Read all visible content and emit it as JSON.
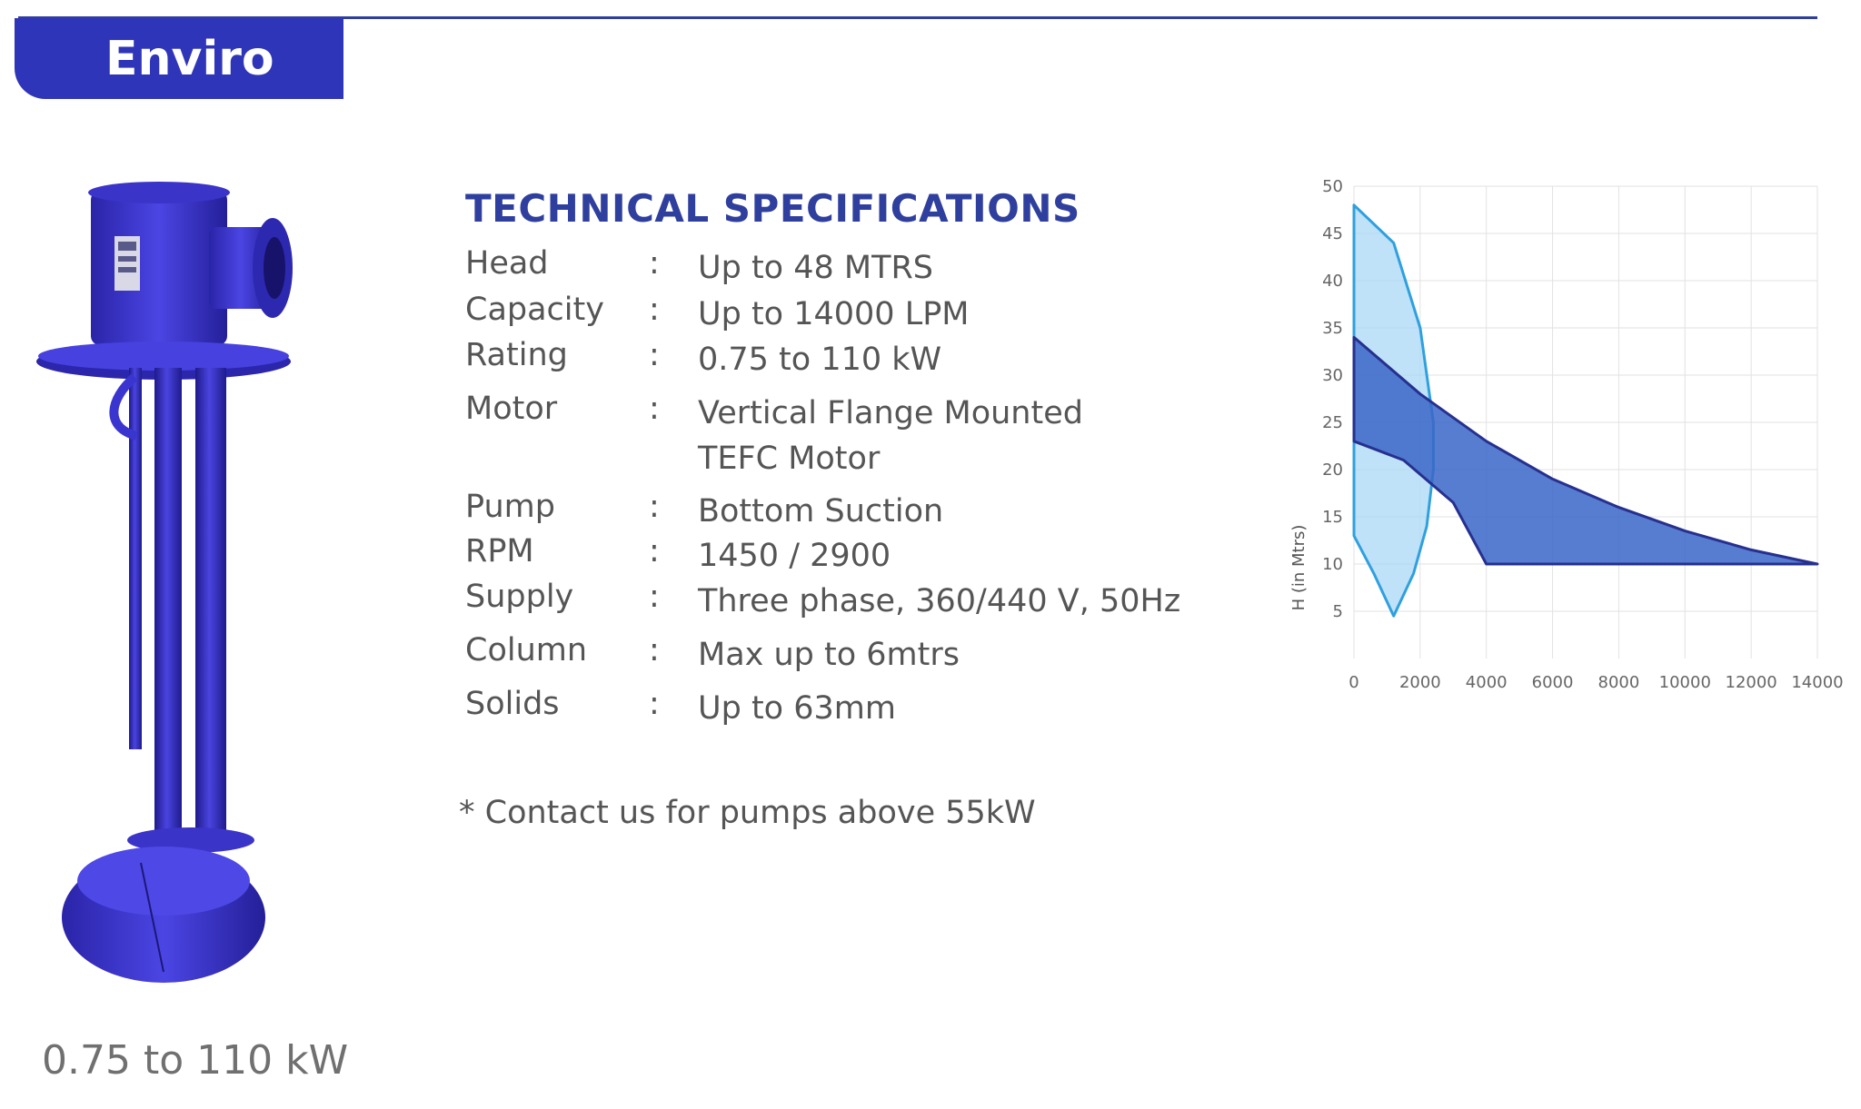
{
  "header": {
    "title": "Enviro"
  },
  "pump": {
    "rating_caption": "0.75 to 110 kW"
  },
  "specs": {
    "heading": "TECHNICAL SPECIFICATIONS",
    "separator": ":",
    "rows": [
      {
        "label": "Head",
        "value": "Up to 48 MTRS"
      },
      {
        "label": "Capacity",
        "value": "Up to 14000 LPM"
      },
      {
        "label": "Rating",
        "value": "0.75  to 110 kW"
      },
      {
        "label": "Motor",
        "value": "Vertical Flange Mounted",
        "value2": "TEFC Motor"
      },
      {
        "label": "Pump",
        "value": "Bottom Suction"
      },
      {
        "label": "RPM",
        "value": "1450 / 2900"
      },
      {
        "label": "Supply",
        "value": "Three phase, 360/440 V, 50Hz"
      },
      {
        "label": "Column",
        "value": "Max up to 6mtrs"
      },
      {
        "label": "Solids",
        "value": "Up to 63mm"
      }
    ],
    "note": "* Contact us for pumps above 55kW"
  },
  "colors": {
    "brand_blue": "#2f35b8",
    "rule_blue": "#2f3f9e",
    "light_region": "#a9d8f5",
    "light_outline": "#2fa0de",
    "dark_region": "#3a66c8",
    "dark_outline": "#26308f"
  },
  "chart_data": {
    "type": "area",
    "title": "",
    "xlabel": "",
    "ylabel": "H (in Mtrs)",
    "xlim": [
      0,
      14000
    ],
    "ylim": [
      0,
      50
    ],
    "x_ticks": [
      "0",
      "2000",
      "4000",
      "6000",
      "8000",
      "10000",
      "12000",
      "14000"
    ],
    "y_ticks": [
      "5",
      "10",
      "15",
      "20",
      "25",
      "30",
      "35",
      "40",
      "45",
      "50"
    ],
    "grid": true,
    "legend": "none",
    "series": [
      {
        "color_key": "light_region",
        "upper": [
          [
            0,
            48
          ],
          [
            1200,
            44
          ],
          [
            2000,
            35
          ],
          [
            2400,
            25
          ],
          [
            2400,
            20
          ],
          [
            2200,
            14
          ],
          [
            1800,
            9
          ],
          [
            1200,
            4.5
          ]
        ],
        "lower": [
          [
            0,
            13
          ],
          [
            600,
            9
          ],
          [
            1200,
            4.5
          ]
        ]
      },
      {
        "color_key": "dark_region",
        "upper": [
          [
            0,
            34
          ],
          [
            2000,
            28
          ],
          [
            4000,
            23
          ],
          [
            6000,
            19
          ],
          [
            8000,
            16
          ],
          [
            10000,
            13.5
          ],
          [
            12000,
            11.5
          ],
          [
            14000,
            10
          ]
        ],
        "lower": [
          [
            0,
            23
          ],
          [
            1500,
            21
          ],
          [
            3000,
            16.5
          ],
          [
            4000,
            10
          ],
          [
            14000,
            10
          ]
        ]
      }
    ]
  }
}
